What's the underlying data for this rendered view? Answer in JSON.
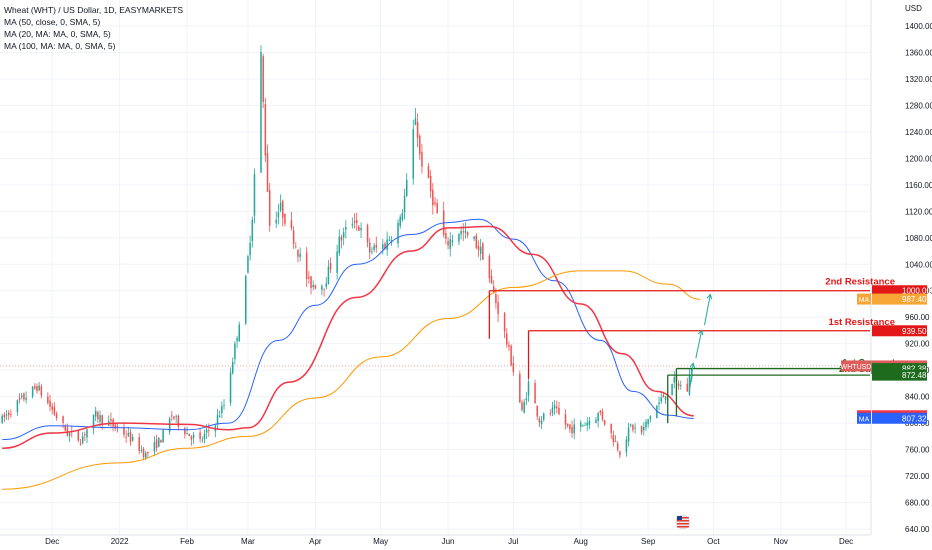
{
  "chart_data": {
    "type": "candlestick",
    "title": "Wheat (WHT) / US Dollar, 1D, EASYMARKETS",
    "indicators": [
      "MA (50, close, 0, SMA, 5)",
      "MA (20, MA: MA, 0, SMA, 5)",
      "MA (100, MA: MA, 0, SMA, 5)"
    ],
    "currency_label": "USD",
    "ylim": [
      640,
      1420
    ],
    "y_ticks": [
      "1400.00",
      "1360.00",
      "1320.00",
      "1280.00",
      "1240.00",
      "1200.00",
      "1160.00",
      "1120.00",
      "1080.00",
      "1040.00",
      "1000.00",
      "960.00",
      "920.00",
      "880.00",
      "840.00",
      "800.00",
      "760.00",
      "720.00",
      "680.00",
      "640.00"
    ],
    "x_months": [
      {
        "label": "Dec",
        "date": "2021-12-01"
      },
      {
        "label": "2022",
        "date": "2022-01-01"
      },
      {
        "label": "Feb",
        "date": "2022-02-01"
      },
      {
        "label": "Mar",
        "date": "2022-03-01"
      },
      {
        "label": "Apr",
        "date": "2022-04-01"
      },
      {
        "label": "May",
        "date": "2022-05-01"
      },
      {
        "label": "Jun",
        "date": "2022-06-01"
      },
      {
        "label": "Jul",
        "date": "2022-07-01"
      },
      {
        "label": "Aug",
        "date": "2022-08-01"
      },
      {
        "label": "Sep",
        "date": "2022-09-01"
      },
      {
        "label": "Oct",
        "date": "2022-10-01"
      },
      {
        "label": "Nov",
        "date": "2022-11-01"
      },
      {
        "label": "Dec",
        "date": "2022-12-01"
      }
    ],
    "x_range": [
      "2021-11-07",
      "2022-12-12"
    ],
    "price_anchors": [
      [
        "2021-11-08",
        805
      ],
      [
        "2021-11-15",
        830
      ],
      [
        "2021-11-24",
        855
      ],
      [
        "2021-12-01",
        820
      ],
      [
        "2021-12-08",
        785
      ],
      [
        "2021-12-14",
        775
      ],
      [
        "2021-12-21",
        812
      ],
      [
        "2021-12-28",
        798
      ],
      [
        "2022-01-05",
        780
      ],
      [
        "2022-01-13",
        752
      ],
      [
        "2022-01-20",
        776
      ],
      [
        "2022-01-25",
        812
      ],
      [
        "2022-02-01",
        785
      ],
      [
        "2022-02-07",
        772
      ],
      [
        "2022-02-14",
        802
      ],
      [
        "2022-02-18",
        828
      ],
      [
        "2022-02-23",
        915
      ],
      [
        "2022-02-28",
        1015
      ],
      [
        "2022-03-03",
        1115
      ],
      [
        "2022-03-07",
        1355
      ],
      [
        "2022-03-09",
        1210
      ],
      [
        "2022-03-11",
        1100
      ],
      [
        "2022-03-16",
        1125
      ],
      [
        "2022-03-22",
        1080
      ],
      [
        "2022-03-29",
        1010
      ],
      [
        "2022-04-05",
        1010
      ],
      [
        "2022-04-12",
        1075
      ],
      [
        "2022-04-19",
        1110
      ],
      [
        "2022-04-26",
        1060
      ],
      [
        "2022-05-03",
        1070
      ],
      [
        "2022-05-10",
        1105
      ],
      [
        "2022-05-13",
        1160
      ],
      [
        "2022-05-17",
        1265
      ],
      [
        "2022-05-19",
        1205
      ],
      [
        "2022-05-24",
        1150
      ],
      [
        "2022-05-31",
        1070
      ],
      [
        "2022-06-06",
        1090
      ],
      [
        "2022-06-13",
        1075
      ],
      [
        "2022-06-17",
        1055
      ],
      [
        "2022-06-22",
        995
      ],
      [
        "2022-06-27",
        935
      ],
      [
        "2022-07-01",
        880
      ],
      [
        "2022-07-05",
        815
      ],
      [
        "2022-07-08",
        860
      ],
      [
        "2022-07-13",
        805
      ],
      [
        "2022-07-20",
        820
      ],
      [
        "2022-07-27",
        790
      ],
      [
        "2022-08-03",
        800
      ],
      [
        "2022-08-10",
        815
      ],
      [
        "2022-08-15",
        783
      ],
      [
        "2022-08-19",
        758
      ],
      [
        "2022-08-24",
        795
      ],
      [
        "2022-08-29",
        785
      ],
      [
        "2022-09-02",
        812
      ],
      [
        "2022-09-07",
        835
      ],
      [
        "2022-09-12",
        864
      ],
      [
        "2022-09-15",
        858
      ],
      [
        "2022-09-19",
        850
      ],
      [
        "2022-09-21",
        888
      ]
    ],
    "moving_averages": [
      {
        "color": "#2962ff",
        "points": [
          [
            "2021-11-08",
            775
          ],
          [
            "2021-12-01",
            796
          ],
          [
            "2022-01-01",
            793
          ],
          [
            "2022-02-01",
            790
          ],
          [
            "2022-02-20",
            800
          ],
          [
            "2022-03-15",
            925
          ],
          [
            "2022-04-01",
            978
          ],
          [
            "2022-04-20",
            1040
          ],
          [
            "2022-05-15",
            1085
          ],
          [
            "2022-06-01",
            1103
          ],
          [
            "2022-06-15",
            1108
          ],
          [
            "2022-07-01",
            1078
          ],
          [
            "2022-07-20",
            1015
          ],
          [
            "2022-08-10",
            925
          ],
          [
            "2022-08-25",
            848
          ],
          [
            "2022-09-10",
            812
          ],
          [
            "2022-09-22",
            807
          ]
        ]
      },
      {
        "color": "#f23645",
        "points": [
          [
            "2021-11-08",
            762
          ],
          [
            "2021-12-01",
            785
          ],
          [
            "2022-01-01",
            800
          ],
          [
            "2022-02-01",
            798
          ],
          [
            "2022-02-20",
            790
          ],
          [
            "2022-03-01",
            793
          ],
          [
            "2022-03-20",
            862
          ],
          [
            "2022-04-20",
            990
          ],
          [
            "2022-05-15",
            1060
          ],
          [
            "2022-06-01",
            1095
          ],
          [
            "2022-06-20",
            1097
          ],
          [
            "2022-07-10",
            1055
          ],
          [
            "2022-08-01",
            980
          ],
          [
            "2022-08-20",
            905
          ],
          [
            "2022-09-05",
            848
          ],
          [
            "2022-09-22",
            811
          ]
        ]
      },
      {
        "color": "#ff9800",
        "points": [
          [
            "2021-11-08",
            700
          ],
          [
            "2022-01-01",
            740
          ],
          [
            "2022-02-01",
            762
          ],
          [
            "2022-03-01",
            780
          ],
          [
            "2022-04-01",
            838
          ],
          [
            "2022-05-01",
            900
          ],
          [
            "2022-06-01",
            958
          ],
          [
            "2022-07-01",
            1005
          ],
          [
            "2022-08-01",
            1030
          ],
          [
            "2022-08-20",
            1030
          ],
          [
            "2022-09-10",
            1010
          ],
          [
            "2022-09-25",
            987
          ]
        ]
      }
    ],
    "levels": [
      {
        "label": "2nd Resistance",
        "value": 1000,
        "start": "2022-06-20",
        "color": "#e31717"
      },
      {
        "label": "1st Resistance",
        "value": 939.5,
        "start": "2022-07-08",
        "color": "#e31717"
      },
      {
        "label": "1st Support",
        "value": 882.38,
        "start": "2022-09-14",
        "color": "#1e6b1e"
      },
      {
        "label": "2nd Support",
        "value": 872.48,
        "start": "2022-09-10",
        "color": "#1e6b1e"
      }
    ],
    "badges": [
      {
        "text": "1000.00",
        "value": 1000,
        "color": "#e31717"
      },
      {
        "text": "987.40",
        "value": 987.4,
        "color": "#f7a535",
        "prefix": "MA"
      },
      {
        "text": "939.50",
        "value": 939.5,
        "color": "#e31717"
      },
      {
        "text": "886.38",
        "value": 886.38,
        "color": "#e05c5c",
        "prefix": "WHTUSD"
      },
      {
        "text": "882.38",
        "value": 882.38,
        "color": "#1e6b1e"
      },
      {
        "text": "872.48",
        "value": 872.48,
        "color": "#1e6b1e"
      },
      {
        "text": "811.11",
        "value": 811.11,
        "color": "#f23645",
        "prefix": "MA"
      },
      {
        "text": "807.32",
        "value": 807.32,
        "color": "#2962ff",
        "prefix": "MA"
      }
    ],
    "projection": [
      [
        "2022-09-22",
        895
      ],
      [
        "2022-09-26",
        945
      ],
      [
        "2022-09-30",
        1000
      ]
    ],
    "current_price": 886.38,
    "up_color": "#26a69a",
    "down_color": "#ef5350"
  }
}
